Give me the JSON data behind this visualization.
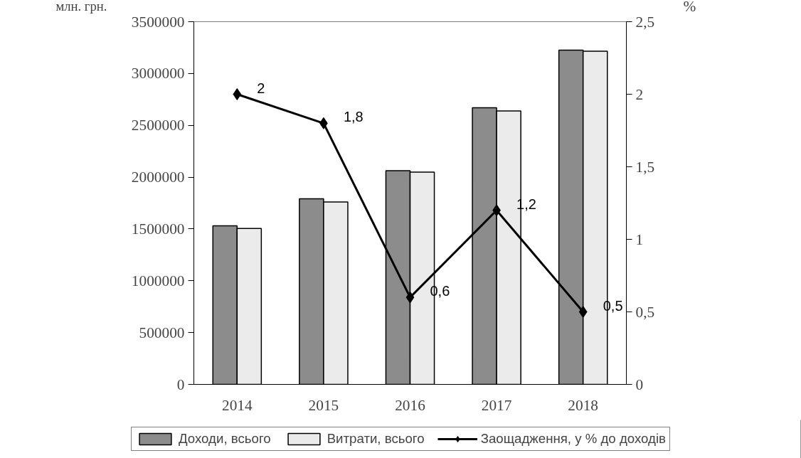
{
  "chart_data": {
    "type": "bar",
    "ylabel": "млн. грн.",
    "y2label": "%",
    "categories": [
      "2014",
      "2015",
      "2016",
      "2017",
      "2018"
    ],
    "series": [
      {
        "name": "Доходи, всього",
        "color": "#8c8c8c",
        "values": [
          1530000,
          1791000,
          2063000,
          2669000,
          3226000
        ]
      },
      {
        "name": "Витрати, всього",
        "color": "#ebebeb",
        "values": [
          1505000,
          1761000,
          2049000,
          2639000,
          3215000
        ]
      },
      {
        "name": "Заощадження, у % до доходів",
        "type": "line",
        "axis": "y2",
        "color": "#000000",
        "marker": "diamond",
        "values": [
          2,
          1.8,
          0.6,
          1.2,
          0.5
        ],
        "value_labels": [
          "2",
          "1,8",
          "0,6",
          "1,2",
          "0,5"
        ]
      }
    ],
    "ylim": [
      0,
      3500000
    ],
    "yticks": [
      0,
      500000,
      1000000,
      1500000,
      2000000,
      2500000,
      3000000,
      3500000
    ],
    "y2lim": [
      0,
      2.5
    ],
    "y2ticks": [
      0,
      {
        "value": 0.5,
        "label": "0,5"
      },
      1,
      {
        "value": 1.5,
        "label": "1,5"
      },
      2,
      {
        "value": 2.5,
        "label": "2,5"
      }
    ],
    "grid": false,
    "legend": "bottom"
  }
}
